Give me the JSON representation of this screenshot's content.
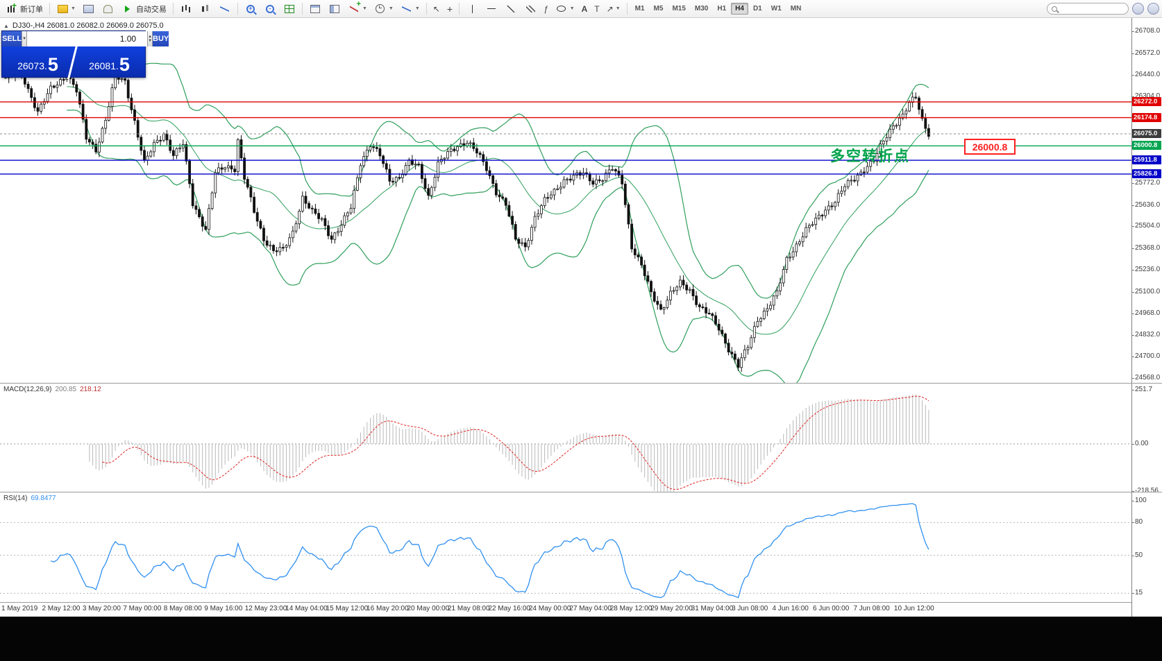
{
  "toolbar": {
    "new_order": "新订单",
    "autotrading": "自动交易",
    "timeframes": [
      "M1",
      "M5",
      "M15",
      "M30",
      "H1",
      "H4",
      "D1",
      "W1",
      "MN"
    ],
    "active_timeframe": "H4"
  },
  "chart": {
    "symbol_info": "DJ30-,H4  26081.0 26082.0 26069.0 26075.0",
    "annotation": "多空转折点",
    "price_tag": "26000.8"
  },
  "trade_panel": {
    "sell_label": "SELL",
    "buy_label": "BUY",
    "volume": "1.00",
    "sell_price_int": "26073.",
    "sell_price_pips": "5",
    "buy_price_int": "26081.",
    "buy_price_pips": "5"
  },
  "chart_data": {
    "type": "candlestick",
    "symbol": "DJ30-",
    "timeframe": "H4",
    "ohlc": {
      "open": "26081.0",
      "high": "26082.0",
      "low": "26069.0",
      "close": "26075.0"
    },
    "price_axis": {
      "plain_labels": [
        26708.0,
        26572.0,
        26440.0,
        26304.0,
        25772.0,
        25636.0,
        25504.0,
        25368.0,
        25236.0,
        25100.0,
        24968.0,
        24832.0,
        24700.0,
        24568.0
      ]
    },
    "hlines": [
      {
        "value": 26272.0,
        "label": "26272.0",
        "color": "#e00000",
        "type": "solid"
      },
      {
        "value": 26174.8,
        "label": "26174.8",
        "color": "#e00000",
        "type": "solid"
      },
      {
        "value": 26075.0,
        "label": "26075.0",
        "color": "#3c3c3c",
        "type": "bid"
      },
      {
        "value": 26000.8,
        "label": "26000.8",
        "color": "#00a550",
        "type": "solid"
      },
      {
        "value": 25911.8,
        "label": "25911.8",
        "color": "#0000c8",
        "type": "solid"
      },
      {
        "value": 25826.8,
        "label": "25826.8",
        "color": "#0000c8",
        "type": "solid"
      }
    ],
    "candles": {
      "count": 287,
      "up_color": "#ffffff",
      "down_color": "#111111",
      "anchors": [
        [
          0,
          26420
        ],
        [
          5,
          26445
        ],
        [
          10,
          26210
        ],
        [
          14,
          26350
        ],
        [
          19,
          26440
        ],
        [
          22,
          26340
        ],
        [
          25,
          26050
        ],
        [
          28,
          25980
        ],
        [
          31,
          26160
        ],
        [
          34,
          26430
        ],
        [
          37,
          26400
        ],
        [
          40,
          26150
        ],
        [
          43,
          25890
        ],
        [
          46,
          26010
        ],
        [
          49,
          26080
        ],
        [
          52,
          25940
        ],
        [
          55,
          26010
        ],
        [
          58,
          25650
        ],
        [
          62,
          25480
        ],
        [
          65,
          25830
        ],
        [
          68,
          25880
        ],
        [
          71,
          25860
        ],
        [
          72,
          26030
        ],
        [
          74,
          25800
        ],
        [
          77,
          25600
        ],
        [
          80,
          25430
        ],
        [
          83,
          25350
        ],
        [
          86,
          25360
        ],
        [
          89,
          25470
        ],
        [
          92,
          25680
        ],
        [
          95,
          25590
        ],
        [
          98,
          25545
        ],
        [
          101,
          25430
        ],
        [
          104,
          25510
        ],
        [
          107,
          25620
        ],
        [
          110,
          25900
        ],
        [
          113,
          26010
        ],
        [
          116,
          25940
        ],
        [
          119,
          25790
        ],
        [
          122,
          25810
        ],
        [
          125,
          25900
        ],
        [
          128,
          25870
        ],
        [
          131,
          25690
        ],
        [
          134,
          25890
        ],
        [
          137,
          25950
        ],
        [
          140,
          26000
        ],
        [
          143,
          26030
        ],
        [
          146,
          25960
        ],
        [
          149,
          25860
        ],
        [
          152,
          25720
        ],
        [
          155,
          25640
        ],
        [
          158,
          25420
        ],
        [
          161,
          25380
        ],
        [
          164,
          25560
        ],
        [
          167,
          25660
        ],
        [
          170,
          25720
        ],
        [
          173,
          25790
        ],
        [
          176,
          25810
        ],
        [
          179,
          25830
        ],
        [
          182,
          25780
        ],
        [
          185,
          25800
        ],
        [
          188,
          25860
        ],
        [
          191,
          25780
        ],
        [
          194,
          25380
        ],
        [
          197,
          25260
        ],
        [
          200,
          25090
        ],
        [
          203,
          24990
        ],
        [
          206,
          25090
        ],
        [
          209,
          25150
        ],
        [
          212,
          25110
        ],
        [
          215,
          25010
        ],
        [
          218,
          24960
        ],
        [
          221,
          24870
        ],
        [
          224,
          24750
        ],
        [
          227,
          24645
        ],
        [
          230,
          24760
        ],
        [
          233,
          24930
        ],
        [
          236,
          25000
        ],
        [
          239,
          25090
        ],
        [
          242,
          25300
        ],
        [
          245,
          25390
        ],
        [
          248,
          25480
        ],
        [
          251,
          25540
        ],
        [
          254,
          25610
        ],
        [
          257,
          25660
        ],
        [
          260,
          25750
        ],
        [
          263,
          25800
        ],
        [
          266,
          25860
        ],
        [
          269,
          25910
        ],
        [
          272,
          26030
        ],
        [
          275,
          26130
        ],
        [
          278,
          26190
        ],
        [
          280,
          26260
        ],
        [
          282,
          26300
        ],
        [
          284,
          26160
        ],
        [
          286,
          26080
        ]
      ]
    },
    "bollinger": {
      "period": 20,
      "deviation": 2,
      "color": "#2e9e5b"
    },
    "macd": {
      "name": "MACD(12,26,9)",
      "value_main": "200.85",
      "value_signal": "218.12",
      "axis_labels": [
        {
          "v": 251.7,
          "t": "251.7"
        },
        {
          "v": 0,
          "t": "0.00"
        },
        {
          "v": -218.56,
          "t": "-218.56"
        }
      ],
      "hist_color": "#b8b8b8",
      "signal_color": "#e02020"
    },
    "rsi": {
      "name": "RSI(14)",
      "value": "69.8477",
      "axis_labels": [
        {
          "v": 100,
          "t": "100"
        },
        {
          "v": 80,
          "t": "80"
        },
        {
          "v": 50,
          "t": "50"
        },
        {
          "v": 15,
          "t": "15"
        }
      ],
      "levels": [
        80,
        50,
        15
      ],
      "line_color": "#3090f0"
    },
    "time_labels": [
      "1 May 2019",
      "2 May 12:00",
      "3 May 20:00",
      "7 May 00:00",
      "8 May 08:00",
      "9 May 16:00",
      "12 May 23:00",
      "14 May 04:00",
      "15 May 12:00",
      "16 May 20:00",
      "20 May 00:00",
      "21 May 08:00",
      "22 May 16:00",
      "24 May 00:00",
      "27 May 04:00",
      "28 May 12:00",
      "29 May 20:00",
      "31 May 04:00",
      "3 Jun 08:00",
      "4 Jun 16:00",
      "6 Jun 00:00",
      "7 Jun 08:00",
      "10 Jun 12:00"
    ]
  }
}
